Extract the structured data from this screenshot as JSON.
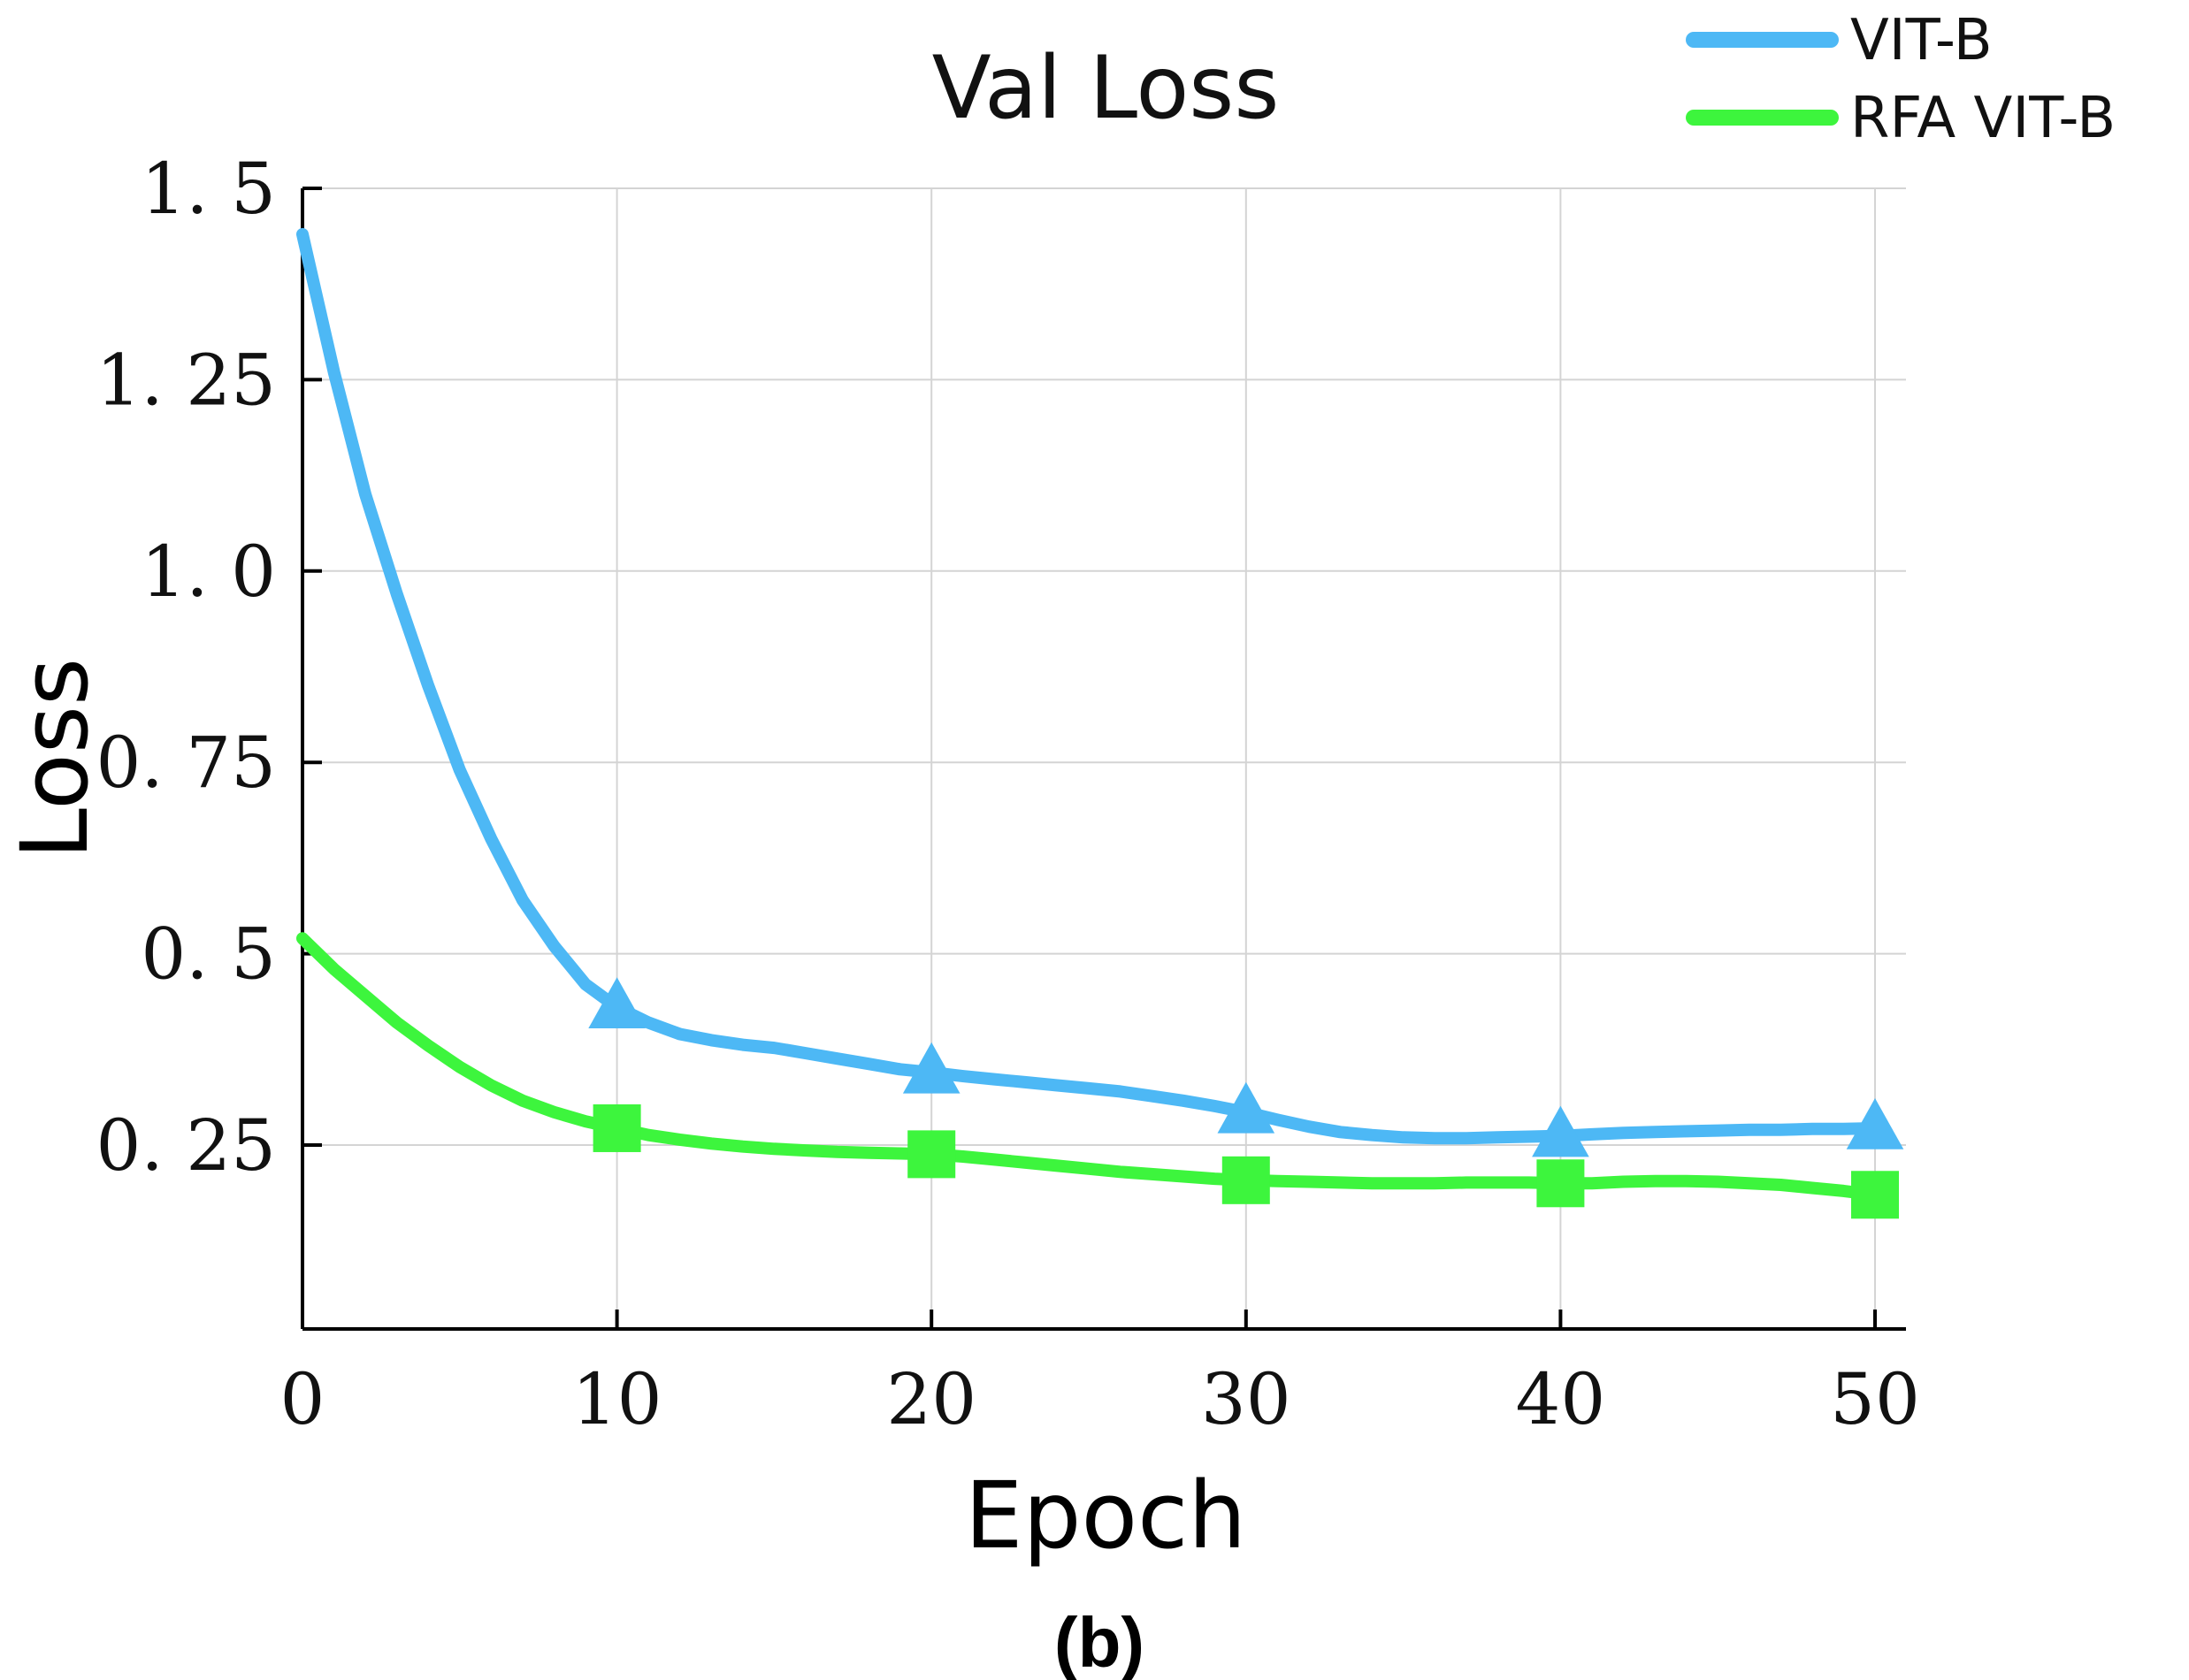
{
  "chart_data": {
    "type": "line",
    "title": "Val Loss",
    "xlabel": "Epoch",
    "ylabel": "Loss",
    "caption": "(b)",
    "xlim": [
      0,
      51
    ],
    "ylim": [
      0.02,
      1.5
    ],
    "xticks": [
      0,
      10,
      20,
      30,
      40,
      50
    ],
    "xtick_labels": [
      "0",
      "10",
      "20",
      "30",
      "40",
      "50"
    ],
    "yticks": [
      0.25,
      0.5,
      0.75,
      1.0,
      1.25,
      1.5
    ],
    "ytick_labels": [
      "0. 25",
      "0. 5",
      "0. 75",
      "1. 0",
      "1. 25",
      "1. 5"
    ],
    "grid": true,
    "legend_position": "top-right",
    "series": [
      {
        "name": "VIT-B",
        "color": "#4db8f5",
        "marker": "triangle",
        "marker_x": [
          10,
          20,
          30,
          40,
          50
        ],
        "x": [
          0,
          1,
          2,
          3,
          4,
          5,
          6,
          7,
          8,
          9,
          10,
          11,
          12,
          13,
          14,
          15,
          16,
          17,
          18,
          19,
          20,
          21,
          22,
          23,
          24,
          25,
          26,
          27,
          28,
          29,
          30,
          31,
          32,
          33,
          34,
          35,
          36,
          37,
          38,
          39,
          40,
          41,
          42,
          43,
          44,
          45,
          46,
          47,
          48,
          49,
          50
        ],
        "values": [
          1.44,
          1.26,
          1.1,
          0.97,
          0.85,
          0.74,
          0.65,
          0.57,
          0.51,
          0.46,
          0.43,
          0.41,
          0.395,
          0.387,
          0.381,
          0.377,
          0.37,
          0.363,
          0.356,
          0.349,
          0.345,
          0.34,
          0.336,
          0.332,
          0.328,
          0.324,
          0.32,
          0.314,
          0.308,
          0.301,
          0.293,
          0.283,
          0.274,
          0.267,
          0.263,
          0.26,
          0.259,
          0.259,
          0.26,
          0.261,
          0.262,
          0.264,
          0.266,
          0.267,
          0.268,
          0.269,
          0.27,
          0.27,
          0.271,
          0.271,
          0.272
        ]
      },
      {
        "name": "RFA VIT-B",
        "color": "#3df53d",
        "marker": "square",
        "marker_x": [
          10,
          20,
          30,
          40,
          50
        ],
        "x": [
          0,
          1,
          2,
          3,
          4,
          5,
          6,
          7,
          8,
          9,
          10,
          11,
          12,
          13,
          14,
          15,
          16,
          17,
          18,
          19,
          20,
          21,
          22,
          23,
          24,
          25,
          26,
          27,
          28,
          29,
          30,
          31,
          32,
          33,
          34,
          35,
          36,
          37,
          38,
          39,
          40,
          41,
          42,
          43,
          44,
          45,
          46,
          47,
          48,
          49,
          50
        ],
        "values": [
          0.52,
          0.48,
          0.445,
          0.41,
          0.38,
          0.352,
          0.328,
          0.308,
          0.293,
          0.281,
          0.272,
          0.263,
          0.257,
          0.252,
          0.248,
          0.245,
          0.243,
          0.241,
          0.24,
          0.239,
          0.238,
          0.235,
          0.231,
          0.227,
          0.223,
          0.219,
          0.215,
          0.212,
          0.209,
          0.206,
          0.204,
          0.203,
          0.202,
          0.201,
          0.2,
          0.2,
          0.2,
          0.201,
          0.201,
          0.201,
          0.2,
          0.2,
          0.202,
          0.203,
          0.203,
          0.202,
          0.2,
          0.198,
          0.194,
          0.19,
          0.185
        ]
      }
    ]
  }
}
